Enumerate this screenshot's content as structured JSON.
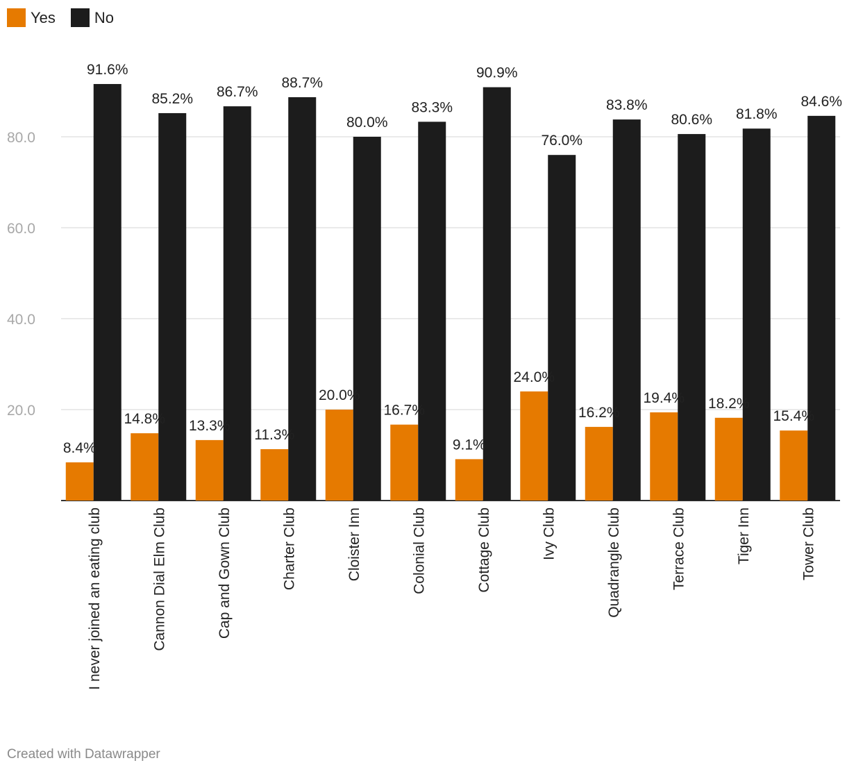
{
  "legend": {
    "items": [
      {
        "label": "Yes",
        "color": "#e67a00"
      },
      {
        "label": "No",
        "color": "#1c1c1c"
      }
    ]
  },
  "footer": {
    "credit": "Created with Datawrapper"
  },
  "chart_data": {
    "type": "bar",
    "categories": [
      "I never joined an eating club",
      "Cannon Dial Elm Club",
      "Cap and Gown Club",
      "Charter Club",
      "Cloister Inn",
      "Colonial Club",
      "Cottage Club",
      "Ivy Club",
      "Quadrangle Club",
      "Terrace Club",
      "Tiger Inn",
      "Tower Club"
    ],
    "series": [
      {
        "name": "Yes",
        "color": "#e67a00",
        "values": [
          8.4,
          14.8,
          13.3,
          11.3,
          20.0,
          16.7,
          9.1,
          24.0,
          16.2,
          19.4,
          18.2,
          15.4
        ],
        "labels": [
          "8.4%",
          "14.8%",
          "13.3%",
          "11.3%",
          "20.0%",
          "16.7%",
          "9.1%",
          "24.0%",
          "16.2%",
          "19.4%",
          "18.2%",
          "15.4%"
        ]
      },
      {
        "name": "No",
        "color": "#1c1c1c",
        "values": [
          91.6,
          85.2,
          86.7,
          88.7,
          80.0,
          83.3,
          90.9,
          76.0,
          83.8,
          80.6,
          81.8,
          84.6
        ],
        "labels": [
          "91.6%",
          "85.2%",
          "86.7%",
          "88.7%",
          "80.0%",
          "83.3%",
          "90.9%",
          "76.0%",
          "83.8%",
          "80.6%",
          "81.8%",
          "84.6%"
        ]
      }
    ],
    "yticks": [
      20,
      40,
      60,
      80
    ],
    "ytick_labels": [
      "20.0",
      "40.0",
      "60.0",
      "80.0"
    ],
    "ylim": [
      0,
      100
    ],
    "grid": true,
    "legend_position": "top-left"
  }
}
